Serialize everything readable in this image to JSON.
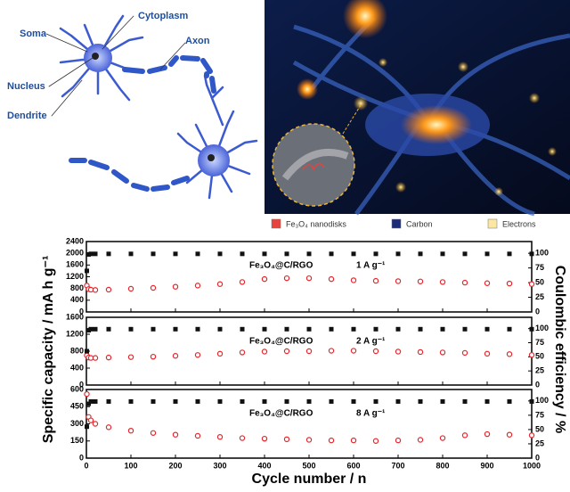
{
  "diagram": {
    "labels": [
      "Soma",
      "Cytoplasm",
      "Axon",
      "Nucleus",
      "Dendrite"
    ]
  },
  "legend": [
    {
      "label": "Fe₃O₄ nanodisks",
      "color": "#e8423c"
    },
    {
      "label": "Carbon",
      "color": "#1c2a7a"
    },
    {
      "label": "Electrons",
      "color": "#fbe7a1"
    }
  ],
  "axes": {
    "xlabel": "Cycle number / n",
    "ylabel": "Specific capacity / mA h g⁻¹",
    "y2label": "Coulombic efficiency / %"
  },
  "chart_data": [
    {
      "type": "scatter",
      "material": "Fe₃O₄@C/RGO",
      "rate": "1 A g⁻¹",
      "x": [
        1,
        5,
        10,
        20,
        50,
        100,
        150,
        200,
        250,
        300,
        350,
        400,
        450,
        500,
        550,
        600,
        650,
        700,
        750,
        800,
        850,
        900,
        950,
        1000
      ],
      "xlim": [
        0,
        1000
      ],
      "xticks": [
        0,
        100,
        200,
        300,
        400,
        500,
        600,
        700,
        800,
        900,
        1000
      ],
      "ylim": [
        0,
        2400
      ],
      "yticks": [
        0,
        400,
        800,
        1200,
        1600,
        2000,
        2400
      ],
      "y2lim": [
        0,
        120
      ],
      "y2ticks": [
        0,
        25,
        50,
        75,
        100
      ],
      "series": [
        {
          "color": "#e8262b",
          "values": [
            900,
            780,
            760,
            750,
            760,
            790,
            820,
            860,
            900,
            950,
            1020,
            1120,
            1150,
            1150,
            1120,
            1080,
            1060,
            1050,
            1040,
            1020,
            1000,
            980,
            970,
            950
          ]
        },
        {
          "color": "#111111",
          "axis": "y2",
          "values": [
            70,
            98,
            99,
            99,
            99,
            99,
            99,
            99,
            99,
            99,
            99,
            99,
            99,
            99,
            99,
            99,
            99,
            99,
            99,
            99,
            99,
            99,
            99,
            99
          ]
        }
      ]
    },
    {
      "type": "scatter",
      "material": "Fe₃O₄@C/RGO",
      "rate": "2 A g⁻¹",
      "x": [
        1,
        5,
        10,
        20,
        50,
        100,
        150,
        200,
        250,
        300,
        350,
        400,
        450,
        500,
        550,
        600,
        650,
        700,
        750,
        800,
        850,
        900,
        950,
        1000
      ],
      "xlim": [
        0,
        1000
      ],
      "xticks": [
        0,
        100,
        200,
        300,
        400,
        500,
        600,
        700,
        800,
        900,
        1000
      ],
      "ylim": [
        0,
        1600
      ],
      "yticks": [
        0,
        400,
        800,
        1200,
        1600
      ],
      "y2lim": [
        0,
        120
      ],
      "y2ticks": [
        0,
        25,
        50,
        75,
        100
      ],
      "series": [
        {
          "color": "#e8262b",
          "values": [
            700,
            650,
            640,
            640,
            650,
            660,
            670,
            690,
            710,
            740,
            770,
            790,
            800,
            800,
            810,
            810,
            800,
            790,
            780,
            770,
            760,
            740,
            730,
            710
          ]
        },
        {
          "color": "#111111",
          "axis": "y2",
          "values": [
            60,
            97,
            99,
            99,
            99,
            99,
            99,
            99,
            99,
            99,
            99,
            99,
            99,
            99,
            99,
            99,
            99,
            99,
            99,
            99,
            99,
            99,
            99,
            99
          ]
        }
      ]
    },
    {
      "type": "scatter",
      "material": "Fe₃O₄@C/RGO",
      "rate": "8 A g⁻¹",
      "x": [
        1,
        5,
        10,
        20,
        50,
        100,
        150,
        200,
        250,
        300,
        350,
        400,
        450,
        500,
        550,
        600,
        650,
        700,
        750,
        800,
        850,
        900,
        950,
        1000
      ],
      "xlim": [
        0,
        1000
      ],
      "xticks": [
        0,
        100,
        200,
        300,
        400,
        500,
        600,
        700,
        800,
        900,
        1000
      ],
      "ylim": [
        0,
        600
      ],
      "yticks": [
        0,
        150,
        300,
        450,
        600
      ],
      "y2lim": [
        0,
        120
      ],
      "y2ticks": [
        0,
        25,
        50,
        75,
        100
      ],
      "series": [
        {
          "color": "#e8262b",
          "values": [
            560,
            360,
            330,
            300,
            270,
            240,
            220,
            205,
            195,
            185,
            175,
            170,
            165,
            160,
            155,
            155,
            150,
            155,
            160,
            175,
            200,
            210,
            205,
            200
          ]
        },
        {
          "color": "#111111",
          "axis": "y2",
          "values": [
            55,
            95,
            99,
            99,
            99,
            99,
            99,
            99,
            99,
            99,
            99,
            99,
            99,
            99,
            99,
            99,
            99,
            99,
            99,
            99,
            99,
            99,
            99,
            99
          ]
        }
      ]
    }
  ]
}
